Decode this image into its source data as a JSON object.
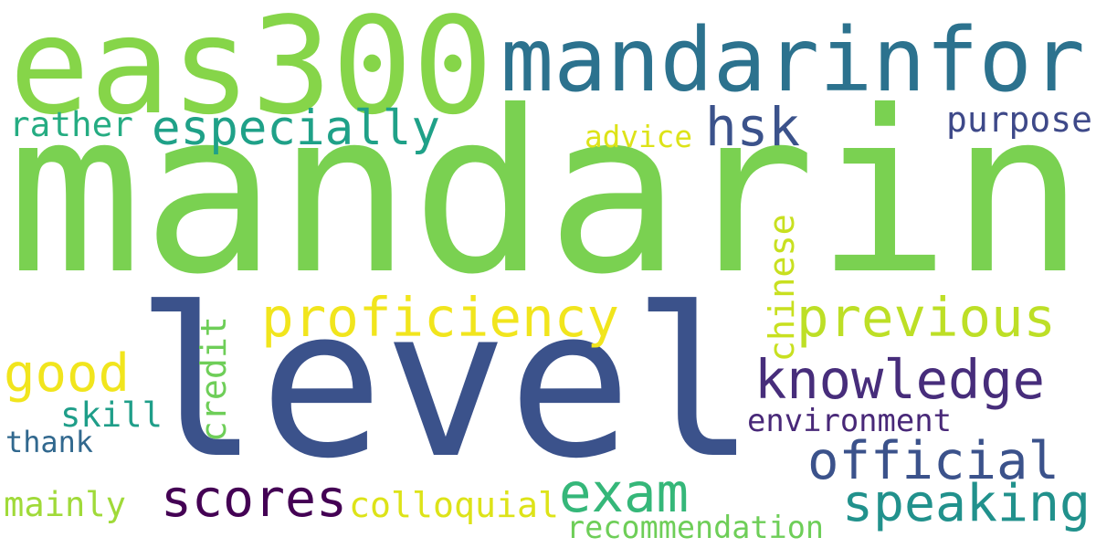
{
  "cloud": {
    "words": [
      {
        "text": "mandarin",
        "color": "#7ad151",
        "vertical": false
      },
      {
        "text": "level",
        "color": "#3b528b",
        "vertical": false
      },
      {
        "text": "eas300",
        "color": "#86d549",
        "vertical": false
      },
      {
        "text": "mandarinfor",
        "color": "#2c728e",
        "vertical": false
      },
      {
        "text": "proficiency",
        "color": "#f1e51d",
        "vertical": false
      },
      {
        "text": "previous",
        "color": "#bddf26",
        "vertical": false
      },
      {
        "text": "especially",
        "color": "#1fa188",
        "vertical": false
      },
      {
        "text": "knowledge",
        "color": "#472d7b",
        "vertical": false
      },
      {
        "text": "official",
        "color": "#3b528b",
        "vertical": false
      },
      {
        "text": "speaking",
        "color": "#21918c",
        "vertical": false
      },
      {
        "text": "scores",
        "color": "#440154",
        "vertical": false
      },
      {
        "text": "exam",
        "color": "#35b779",
        "vertical": false
      },
      {
        "text": "hsk",
        "color": "#3b528b",
        "vertical": false
      },
      {
        "text": "good",
        "color": "#f1e51d",
        "vertical": false
      },
      {
        "text": "colloquial",
        "color": "#dde318",
        "vertical": false
      },
      {
        "text": "environment",
        "color": "#482878",
        "vertical": false
      },
      {
        "text": "recommendation",
        "color": "#6ece58",
        "vertical": false
      },
      {
        "text": "chinese",
        "color": "#c8e020",
        "vertical": true
      },
      {
        "text": "credit",
        "color": "#6ece58",
        "vertical": true
      },
      {
        "text": "purpose",
        "color": "#3e4989",
        "vertical": false
      },
      {
        "text": "rather",
        "color": "#25ac82",
        "vertical": false
      },
      {
        "text": "advice",
        "color": "#dde318",
        "vertical": false
      },
      {
        "text": "mainly",
        "color": "#a0da39",
        "vertical": false
      },
      {
        "text": "skill",
        "color": "#1f9e89",
        "vertical": false
      },
      {
        "text": "thank",
        "color": "#31688e",
        "vertical": false
      }
    ]
  }
}
